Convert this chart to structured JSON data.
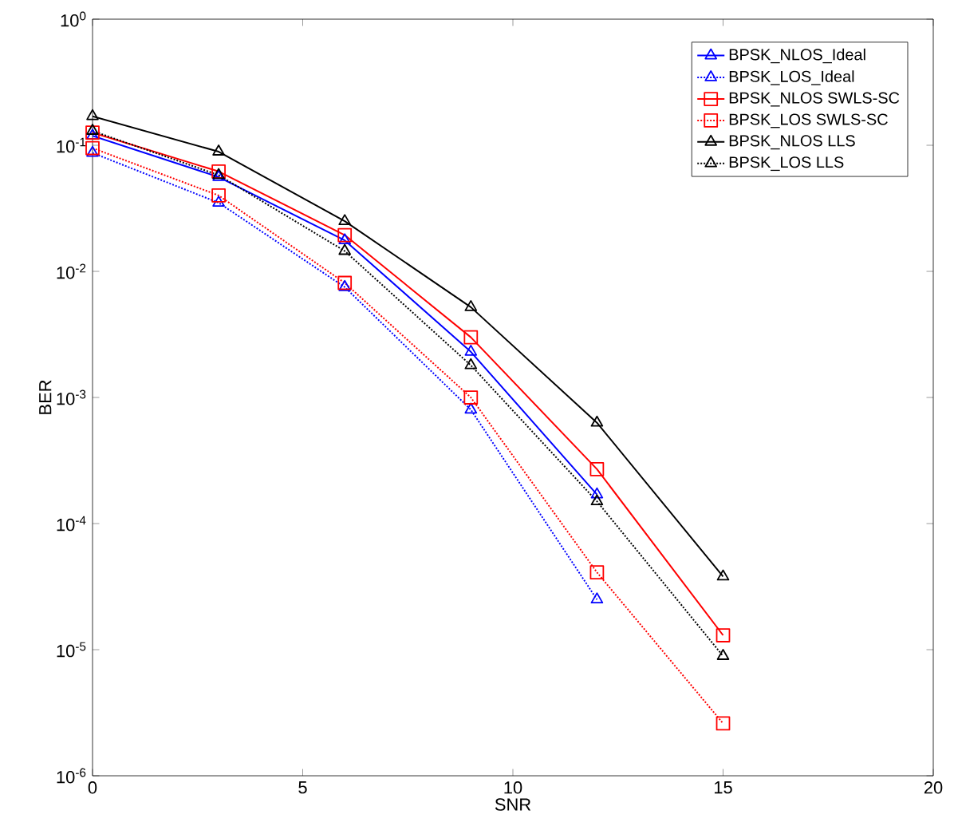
{
  "chart_data": {
    "type": "line",
    "xlabel": "SNR",
    "ylabel": "BER",
    "log": "y",
    "grid": false,
    "legend": "top right",
    "xlim": [
      0,
      20
    ],
    "xticks": [
      0,
      5,
      10,
      15,
      20
    ],
    "ylim": [
      1e-06,
      1
    ],
    "yticks": [
      {
        "value": 1e-06,
        "label": "10$^{-6}$"
      },
      {
        "value": 1e-05,
        "label": "10$^{-5}$"
      },
      {
        "value": 0.0001,
        "label": "10$^{-4}$"
      },
      {
        "value": 0.001,
        "label": "10$^{-3}$"
      },
      {
        "value": 0.01,
        "label": "10$^{-2}$"
      },
      {
        "value": 0.1,
        "label": "10$^{-1}$"
      },
      {
        "value": 1,
        "label": "10$^{0}$"
      }
    ],
    "x": [
      0,
      3,
      6,
      9,
      12,
      15
    ],
    "series": [
      {
        "name": "BPSK_NLOS_Ideal",
        "color": "#0000ff",
        "marker": "triangle",
        "line_style": "solid",
        "values": [
          0.119,
          0.056,
          0.0176,
          0.0023,
          0.00017,
          null
        ]
      },
      {
        "name": "BPSK_LOS_Ideal",
        "color": "#0000ff",
        "marker": "triangle",
        "line_style": "dotted",
        "values": [
          0.087,
          0.035,
          0.0075,
          0.0008,
          2.5e-05,
          null
        ]
      },
      {
        "name": "BPSK_NLOS SWLS-SC",
        "color": "#ff0000",
        "marker": "square",
        "line_style": "solid",
        "values": [
          0.126,
          0.062,
          0.0194,
          0.003,
          0.00027,
          1.3e-05
        ]
      },
      {
        "name": "BPSK_LOS SWLS-SC",
        "color": "#ff0000",
        "marker": "square",
        "line_style": "dotted",
        "values": [
          0.095,
          0.04,
          0.0081,
          0.001,
          4.1e-05,
          2.6e-06
        ]
      },
      {
        "name": "BPSK_NLOS LLS",
        "color": "#000000",
        "marker": "triangle",
        "line_style": "solid",
        "values": [
          0.17,
          0.089,
          0.025,
          0.0052,
          0.00063,
          3.8e-05
        ]
      },
      {
        "name": "BPSK_LOS LLS",
        "color": "#000000",
        "marker": "triangle",
        "line_style": "dotted",
        "values": [
          0.13,
          0.058,
          0.0145,
          0.0018,
          0.00015,
          8.9e-06
        ]
      }
    ]
  }
}
